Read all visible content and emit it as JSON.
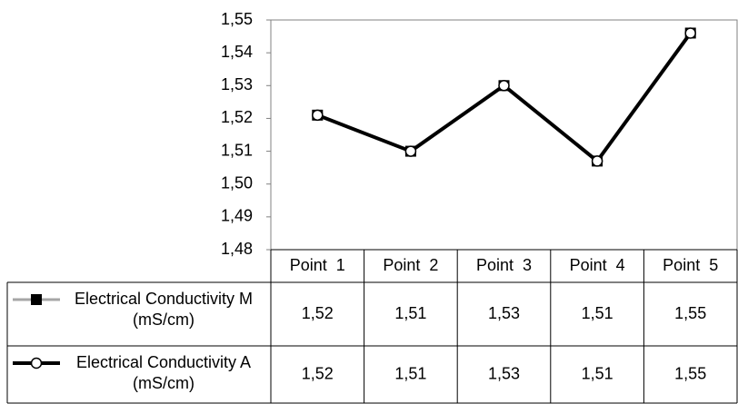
{
  "chart_data": {
    "type": "line",
    "categories": [
      "Point  1",
      "Point  2",
      "Point  3",
      "Point  4",
      "Point  5"
    ],
    "series": [
      {
        "name": "Electrical Conductivity M (mS/cm)",
        "color": "#a6a6a6",
        "marker": "square",
        "marker_color": "#000000",
        "values": [
          1.521,
          1.51,
          1.53,
          1.507,
          1.546
        ],
        "value_labels": [
          "1,52",
          "1,51",
          "1,53",
          "1,51",
          "1,55"
        ]
      },
      {
        "name": "Electrical Conductivity A (mS/cm)",
        "color": "#000000",
        "marker": "circle",
        "marker_color": "#ffffff",
        "values": [
          1.521,
          1.51,
          1.53,
          1.507,
          1.546
        ],
        "value_labels": [
          "1,52",
          "1,51",
          "1,53",
          "1,51",
          "1,55"
        ]
      }
    ],
    "ylim": [
      1.48,
      1.55
    ],
    "yticks": [
      {
        "value": 1.48,
        "label": "1,48"
      },
      {
        "value": 1.49,
        "label": "1,49"
      },
      {
        "value": 1.5,
        "label": "1,50"
      },
      {
        "value": 1.51,
        "label": "1,51"
      },
      {
        "value": 1.52,
        "label": "1,52"
      },
      {
        "value": 1.53,
        "label": "1,53"
      },
      {
        "value": 1.54,
        "label": "1,54"
      },
      {
        "value": 1.55,
        "label": "1,55"
      }
    ],
    "grid": false,
    "data_table": true
  }
}
